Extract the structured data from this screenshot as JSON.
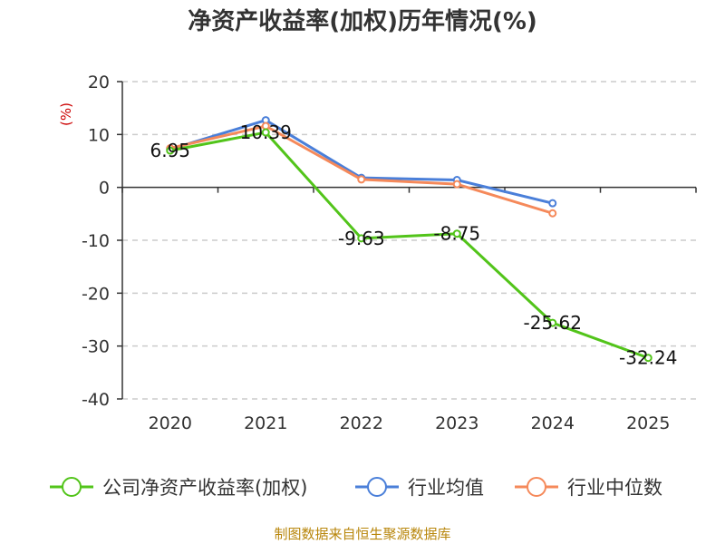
{
  "chart_data": {
    "type": "line",
    "title": "净资产收益率(加权)历年情况(%)",
    "ylabel": "(%)",
    "xlabel": "",
    "categories": [
      "2020",
      "2021",
      "2022",
      "2023",
      "2024",
      "2025"
    ],
    "ylim": [
      -40,
      20
    ],
    "yticks": [
      20,
      10,
      0,
      -10,
      -20,
      -30,
      -40
    ],
    "grid": true,
    "legend_position": "bottom",
    "series": [
      {
        "name": "公司净资产收益率(加权)",
        "color": "#52c41a",
        "values": [
          6.95,
          10.39,
          -9.63,
          -8.75,
          -25.62,
          -32.24
        ],
        "labels": [
          "6.95",
          "10.39",
          "-9.63",
          "-8.75",
          "-25.62",
          "-32.24"
        ]
      },
      {
        "name": "行业均值",
        "color": "#4a7fd9",
        "values": [
          7.2,
          12.7,
          1.8,
          1.4,
          -3.0,
          null
        ]
      },
      {
        "name": "行业中位数",
        "color": "#f5895a",
        "values": [
          7.4,
          11.6,
          1.5,
          0.6,
          -4.9,
          null
        ]
      }
    ]
  },
  "source": "制图数据来自恒生聚源数据库"
}
